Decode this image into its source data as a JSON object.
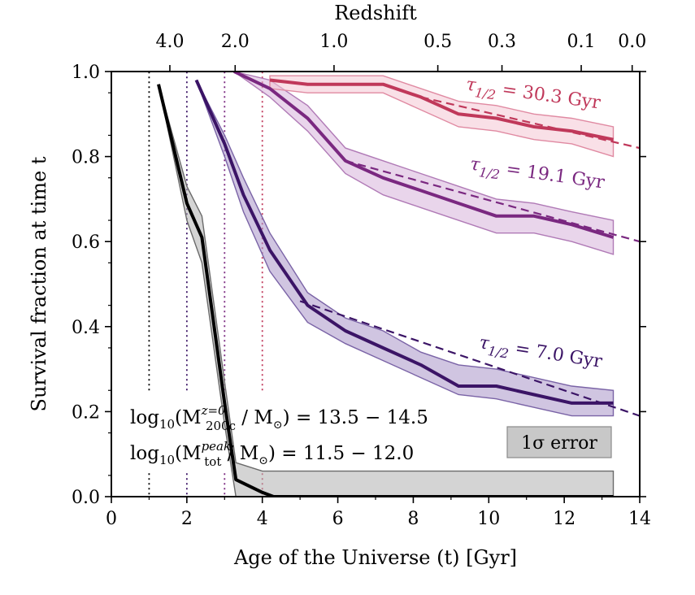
{
  "chart_data": {
    "type": "line",
    "xlabel": "Age of the Universe  (t)  [Gyr]",
    "ylabel": "Survival fraction at time t",
    "top_axis_label": "Redshift",
    "xlim": [
      0,
      14
    ],
    "ylim": [
      0,
      1
    ],
    "x_ticks": [
      0,
      2,
      4,
      6,
      8,
      10,
      12,
      14
    ],
    "x_tick_labels": [
      "0",
      "2",
      "4",
      "6",
      "8",
      "10",
      "12",
      "14"
    ],
    "y_ticks": [
      0.0,
      0.2,
      0.4,
      0.6,
      0.8,
      1.0
    ],
    "y_tick_labels": [
      "0.0",
      "0.2",
      "0.4",
      "0.6",
      "0.8",
      "1.0"
    ],
    "top_ticks": [
      {
        "label": "4.0",
        "age": 1.55
      },
      {
        "label": "2.0",
        "age": 3.28
      },
      {
        "label": "1.0",
        "age": 5.9
      },
      {
        "label": "0.5",
        "age": 8.65
      },
      {
        "label": "0.3",
        "age": 10.35
      },
      {
        "label": "0.1",
        "age": 12.45
      },
      {
        "label": "0.0",
        "age": 13.8
      }
    ],
    "annotation_lines": [
      {
        "prefix": "log",
        "sub": "10",
        "mid": "(M",
        "sup": "z=0",
        "subm": "200c",
        "rest": " / M",
        "end": ") = 13.5 − 14.5"
      },
      {
        "prefix": "log",
        "sub": "10",
        "mid": "(M",
        "sup": "peak",
        "subm": "tot",
        "rest": " / M",
        "end": ") = 11.5 − 12.0"
      }
    ],
    "legend_label": "1σ error",
    "vlines": [
      {
        "x": 1.0,
        "color": "#000000"
      },
      {
        "x": 2.0,
        "color": "#3b1466"
      },
      {
        "x": 3.0,
        "color": "#7a2880"
      },
      {
        "x": 4.0,
        "color": "#c0385a"
      }
    ],
    "series": [
      {
        "name": "earliest",
        "color": "#000000",
        "band_color": "#b0b0b0",
        "band_stroke": "#6a6a6a",
        "tau_label": "",
        "x": [
          1.25,
          2.0,
          2.4,
          3.0,
          3.3,
          4.0,
          4.3,
          13.3
        ],
        "y": [
          0.97,
          0.69,
          0.61,
          0.22,
          0.04,
          0.01,
          0.0,
          0.0
        ],
        "upper": [
          0.97,
          0.73,
          0.66,
          0.27,
          0.08,
          0.06,
          0.06,
          0.06
        ],
        "lower": [
          0.97,
          0.65,
          0.55,
          0.17,
          0.0,
          0.0,
          0.0,
          0.0
        ]
      },
      {
        "name": "tau_7.0",
        "color": "#3b1466",
        "band_color": "#a995c9",
        "band_stroke": "#7a63a6",
        "tau_label": "τ1/2 = 7.0 Gyr",
        "tau_number": "7.0",
        "x": [
          2.25,
          3.0,
          3.5,
          4.2,
          5.2,
          6.2,
          7.2,
          8.2,
          9.2,
          10.2,
          11.2,
          12.2,
          13.3
        ],
        "y": [
          0.98,
          0.83,
          0.71,
          0.58,
          0.45,
          0.39,
          0.35,
          0.31,
          0.26,
          0.26,
          0.24,
          0.22,
          0.22
        ],
        "upper": [
          0.98,
          0.85,
          0.75,
          0.62,
          0.48,
          0.42,
          0.39,
          0.34,
          0.31,
          0.3,
          0.28,
          0.26,
          0.25
        ],
        "lower": [
          0.98,
          0.8,
          0.67,
          0.53,
          0.41,
          0.36,
          0.32,
          0.28,
          0.24,
          0.23,
          0.21,
          0.19,
          0.19
        ],
        "fit_x": [
          5.0,
          14.0
        ],
        "fit_y": [
          0.46,
          0.19
        ]
      },
      {
        "name": "tau_19.1",
        "color": "#7a2880",
        "band_color": "#d7b3db",
        "band_stroke": "#b07ab6",
        "tau_label": "τ1/2 = 19.1 Gyr",
        "tau_number": "19.1",
        "x": [
          3.25,
          4.2,
          5.2,
          6.2,
          7.2,
          8.2,
          9.2,
          10.2,
          11.2,
          12.2,
          13.3
        ],
        "y": [
          1.0,
          0.96,
          0.89,
          0.79,
          0.75,
          0.72,
          0.69,
          0.66,
          0.66,
          0.64,
          0.61
        ],
        "upper": [
          1.0,
          0.98,
          0.92,
          0.82,
          0.79,
          0.76,
          0.73,
          0.7,
          0.69,
          0.67,
          0.65
        ],
        "lower": [
          1.0,
          0.94,
          0.86,
          0.76,
          0.71,
          0.68,
          0.65,
          0.62,
          0.62,
          0.6,
          0.57
        ],
        "fit_x": [
          6.2,
          14.0
        ],
        "fit_y": [
          0.79,
          0.6
        ]
      },
      {
        "name": "tau_30.3",
        "color": "#c0385a",
        "band_color": "#f4c6d3",
        "band_stroke": "#e08aa2",
        "tau_label": "τ1/2 = 30.3 Gyr",
        "tau_number": "30.3",
        "x": [
          4.2,
          5.2,
          6.2,
          7.2,
          8.2,
          9.2,
          10.2,
          11.2,
          12.2,
          13.3
        ],
        "y": [
          0.98,
          0.97,
          0.97,
          0.97,
          0.94,
          0.9,
          0.89,
          0.87,
          0.86,
          0.84
        ],
        "upper": [
          0.99,
          0.99,
          0.99,
          0.99,
          0.96,
          0.93,
          0.92,
          0.9,
          0.89,
          0.87
        ],
        "lower": [
          0.96,
          0.95,
          0.95,
          0.95,
          0.91,
          0.87,
          0.86,
          0.84,
          0.83,
          0.8
        ],
        "fit_x": [
          8.2,
          14.0
        ],
        "fit_y": [
          0.94,
          0.82
        ]
      }
    ]
  }
}
